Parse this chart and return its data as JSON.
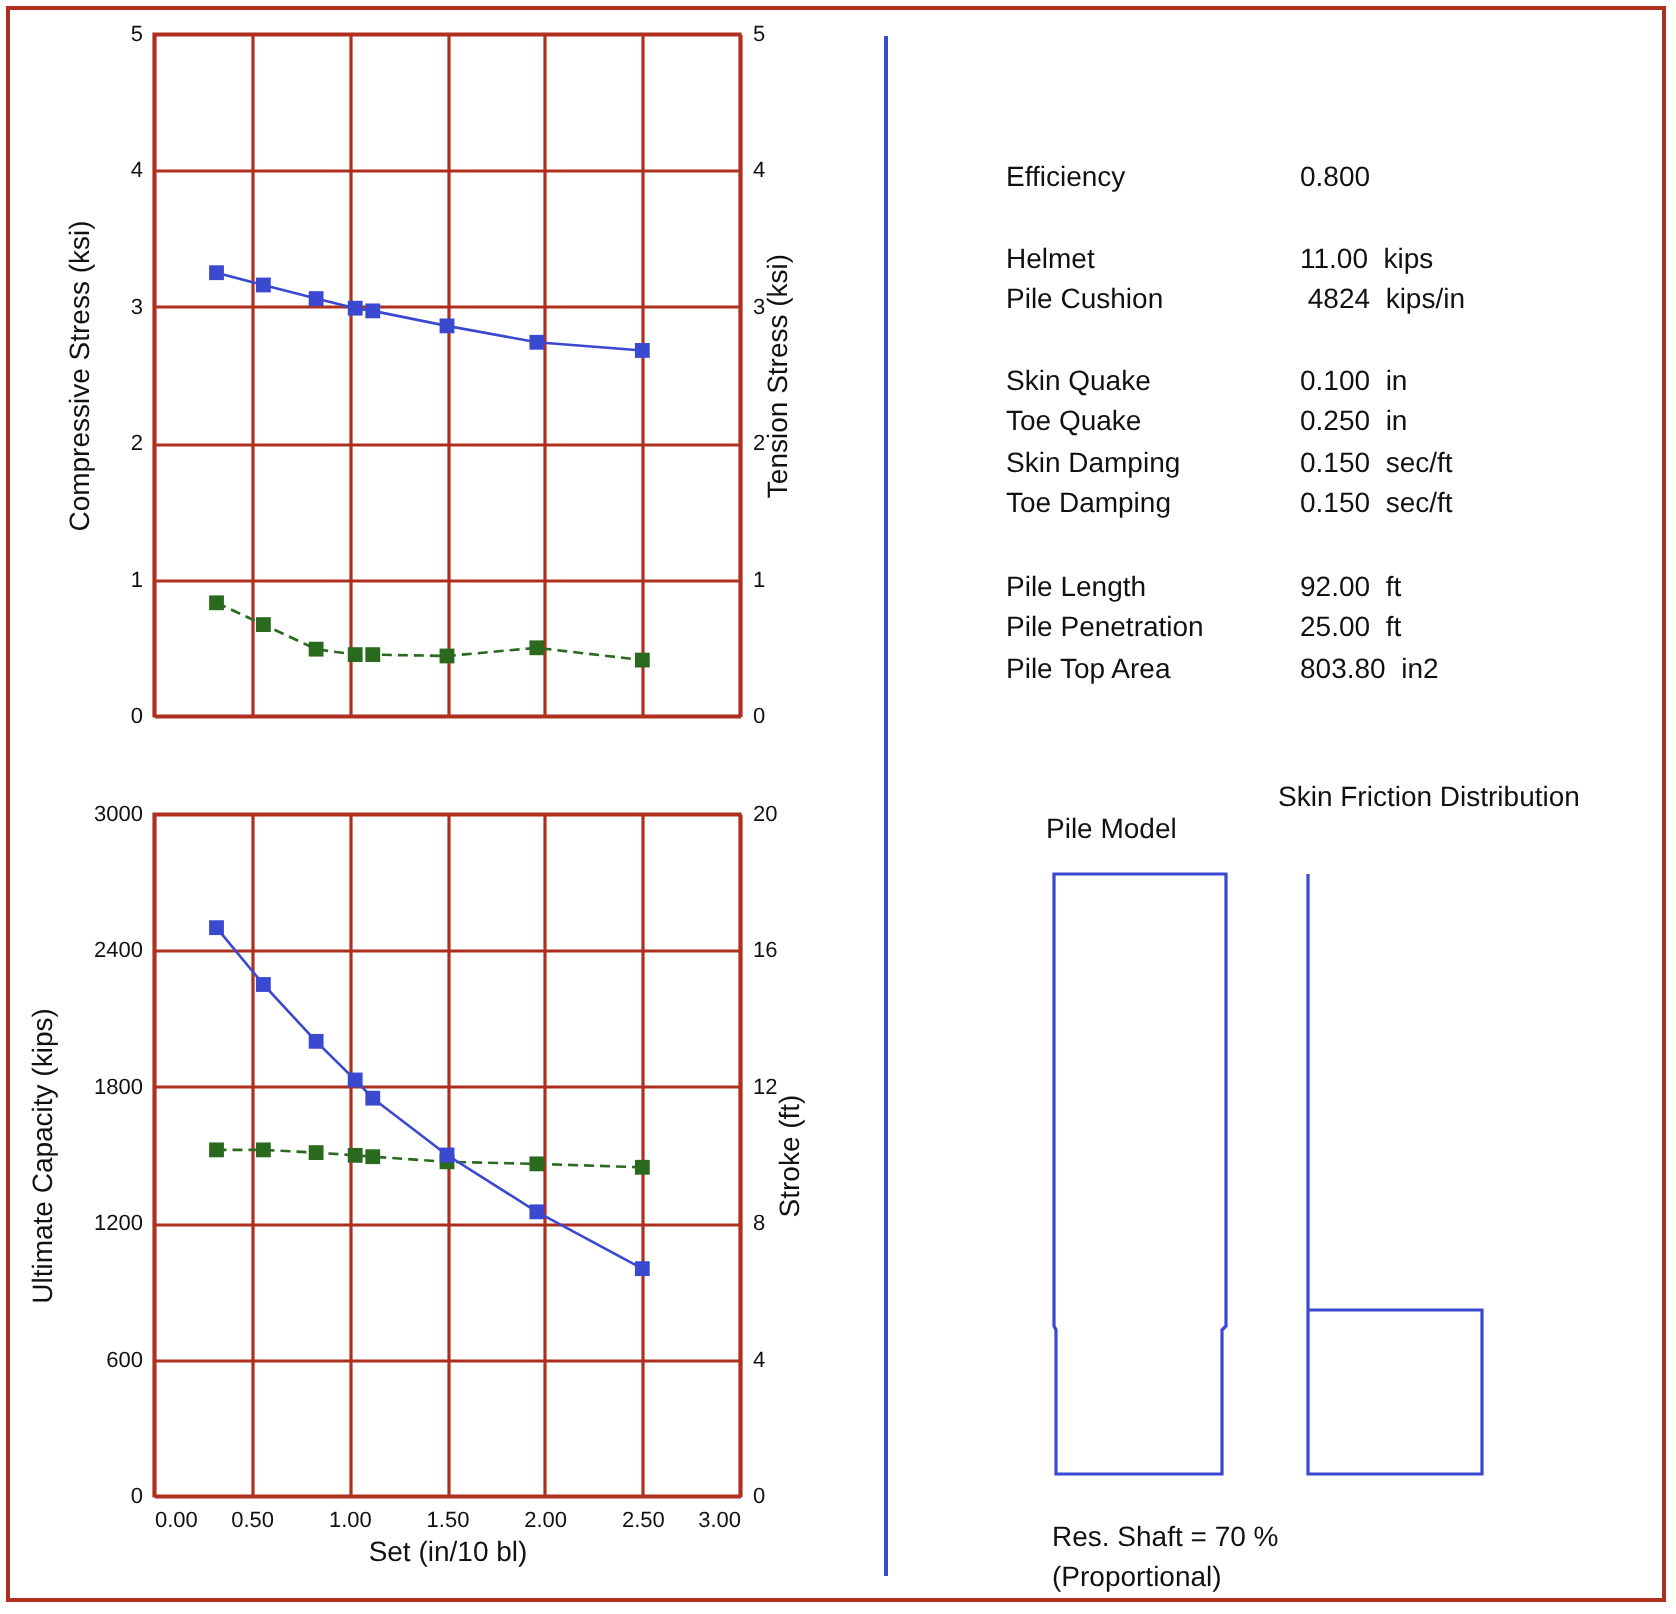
{
  "chart_data": [
    {
      "type": "line",
      "ylabel": "Compressive Stress (ksi)",
      "y2label": "Tension Stress (ksi)",
      "xlim": [
        0,
        3
      ],
      "xticks": [
        0,
        0.5,
        1,
        1.5,
        2,
        2.5,
        3
      ],
      "ylim": [
        0,
        5
      ],
      "yticks": [
        0,
        1,
        2,
        3,
        4,
        5
      ],
      "y2lim": [
        0,
        5
      ],
      "y2ticks": [
        0,
        1,
        2,
        3,
        4,
        5
      ],
      "grid": true,
      "marker": "square",
      "tick_labels": "y",
      "series": [
        {
          "color": "#3b48d0",
          "line_style": "solid",
          "x": [
            0.32,
            0.56,
            0.83,
            1.03,
            1.12,
            1.5,
            1.96,
            2.5
          ],
          "values": [
            3.25,
            3.16,
            3.06,
            2.99,
            2.97,
            2.86,
            2.74,
            2.68
          ]
        },
        {
          "color": "#2a6a1e",
          "line_style": "dashed",
          "axis": "y2",
          "x": [
            0.32,
            0.56,
            0.83,
            1.03,
            1.12,
            1.5,
            1.96,
            2.5
          ],
          "values": [
            0.83,
            0.67,
            0.49,
            0.45,
            0.45,
            0.44,
            0.5,
            0.41
          ]
        }
      ]
    },
    {
      "type": "line",
      "xlabel": "Set (in/10 bl)",
      "ylabel": "Ultimate Capacity (kips)",
      "y2label": "Stroke (ft)",
      "xlim": [
        0,
        3
      ],
      "xticks": [
        {
          "value": 0,
          "label": "0.00"
        },
        {
          "value": 0.5,
          "label": "0.50"
        },
        {
          "value": 1,
          "label": "1.00"
        },
        {
          "value": 1.5,
          "label": "1.50"
        },
        {
          "value": 2,
          "label": "2.00"
        },
        {
          "value": 2.5,
          "label": "2.50"
        },
        {
          "value": 3,
          "label": "3.00"
        }
      ],
      "ylim": [
        0,
        3000
      ],
      "yticks": [
        0,
        600,
        1200,
        1800,
        2400,
        3000
      ],
      "y2lim": [
        0,
        20
      ],
      "y2ticks": [
        0,
        4,
        8,
        12,
        16,
        20
      ],
      "grid": true,
      "marker": "square",
      "series": [
        {
          "color": "#3b48d0",
          "line_style": "solid",
          "x": [
            0.32,
            0.56,
            0.83,
            1.03,
            1.12,
            1.5,
            1.96,
            2.5
          ],
          "values": [
            2500,
            2250,
            2000,
            1830,
            1750,
            1500,
            1250,
            1000
          ]
        },
        {
          "color": "#2a6a1e",
          "line_style": "dashed",
          "axis": "y2",
          "x": [
            0.32,
            0.56,
            0.83,
            1.03,
            1.12,
            1.5,
            1.96,
            2.5
          ],
          "values": [
            10.15,
            10.15,
            10.07,
            9.99,
            9.95,
            9.8,
            9.74,
            9.64
          ]
        }
      ]
    },
    {
      "type": "other",
      "annotations": [
        "Efficiency",
        "0.800",
        "Helmet",
        "11.00  kips",
        "Pile Cushion",
        " 4824  kips/in",
        "Skin Quake",
        "0.100  in",
        "Toe Quake",
        "0.250  in",
        "Skin Damping",
        "0.150  sec/ft",
        "Toe Damping",
        "0.150  sec/ft",
        "Pile Length",
        "92.00  ft",
        "Pile Penetration",
        "25.00  ft",
        "Pile Top Area",
        "803.80  in2",
        "Pile Model",
        "Skin Friction Distribution",
        "Res. Shaft = 70 %",
        "(Proportional)"
      ]
    }
  ]
}
